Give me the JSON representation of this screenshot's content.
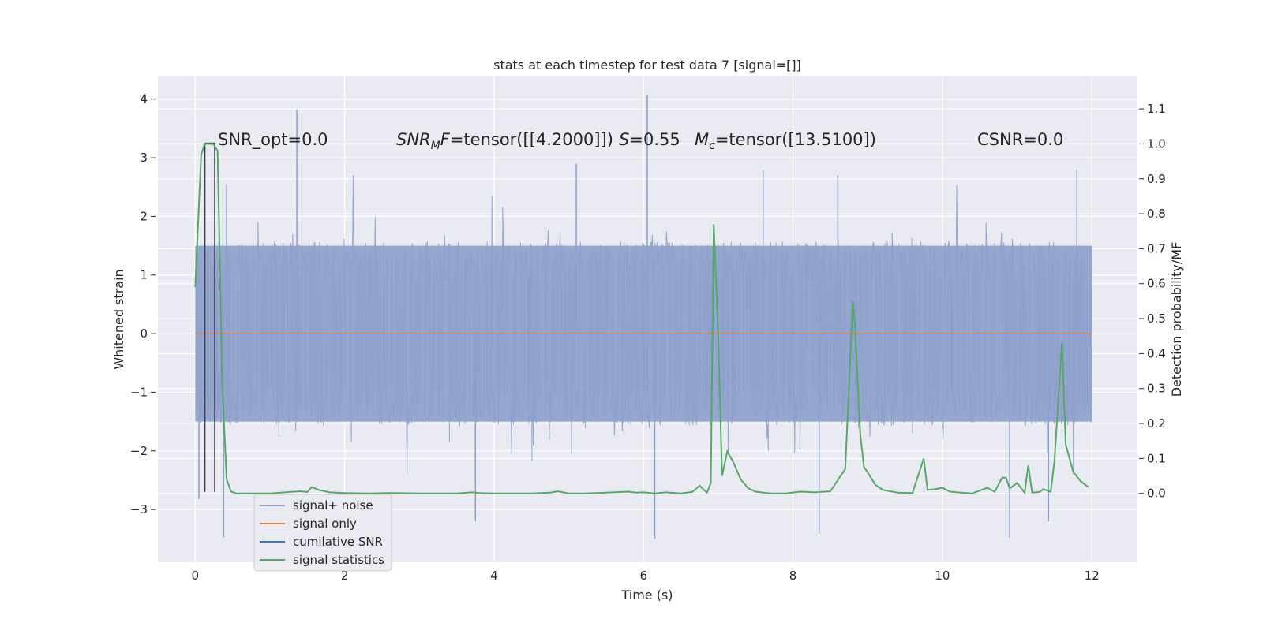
{
  "chart_data": {
    "type": "line",
    "title": "stats at each timestep for test data 7 [signal=[]]",
    "xlabel": "Time (s)",
    "ylabel_left": "Whitened strain",
    "ylabel_right": "Detection probability/MF",
    "xlim": [
      -0.5,
      12.6
    ],
    "ylim_left": [
      -3.9,
      4.4
    ],
    "ylim_right": [
      -0.197,
      1.195
    ],
    "x_ticks": [
      "0",
      "2",
      "4",
      "6",
      "8",
      "10",
      "12"
    ],
    "y_ticks_left": [
      "4",
      "3",
      "2",
      "1",
      "0",
      "−1",
      "−2",
      "−3"
    ],
    "y_ticks_right": [
      "1.1",
      "1.0",
      "0.9",
      "0.8",
      "0.7",
      "0.6",
      "0.5",
      "0.4",
      "0.3",
      "0.2",
      "0.1",
      "0.0"
    ],
    "grid": true,
    "legend_position": "bottom-left",
    "annotations": {
      "snr_opt": "SNR_opt=0.0",
      "snr_mf_symbol": "SNR",
      "snr_mf_sub": "M",
      "snr_mf_suffix": "F",
      "snr_mf_value": "=tensor([[4.2000]])",
      "s_symbol": "S",
      "s_value": "=0.55",
      "mc_symbol": "M",
      "mc_sub": "c",
      "mc_value": "=tensor([13.5100])",
      "csnr": "CSNR=0.0"
    },
    "series": [
      {
        "name": "signal+ noise",
        "axis": "left",
        "color": "#8da0cb",
        "t_start": 0,
        "t_end": 12,
        "samples": 1500,
        "envelope_core": 1.5,
        "spikes_up": [
          [
            1.36,
            3.82
          ],
          [
            6.05,
            4.08
          ],
          [
            0.42,
            2.55
          ],
          [
            5.1,
            2.9
          ],
          [
            7.6,
            2.8
          ],
          [
            8.6,
            2.7
          ],
          [
            11.8,
            2.8
          ]
        ],
        "spikes_down": [
          [
            0.38,
            -3.48
          ],
          [
            6.15,
            -3.5
          ],
          [
            8.35,
            -3.42
          ],
          [
            10.9,
            -3.48
          ],
          [
            3.75,
            -3.2
          ],
          [
            11.42,
            -3.2
          ],
          [
            0.05,
            -2.82
          ]
        ]
      },
      {
        "name": "signal only",
        "axis": "left",
        "color": "#dd8452",
        "x": [
          0,
          12
        ],
        "y": [
          0,
          0
        ]
      },
      {
        "name": "cumilative SNR",
        "axis": "left",
        "color": "#4c72b0",
        "segments": [
          [
            0.13,
            3.25,
            -2.7
          ],
          [
            0.26,
            3.25,
            -2.7
          ]
        ]
      },
      {
        "name": "signal statistics",
        "axis": "right",
        "color": "#55a868",
        "x": [
          0,
          0.08,
          0.13,
          0.18,
          0.24,
          0.3,
          0.36,
          0.42,
          0.48,
          0.55,
          0.65,
          0.8,
          1.0,
          1.2,
          1.4,
          1.5,
          1.56,
          1.65,
          1.8,
          2.0,
          2.3,
          2.6,
          3.0,
          3.5,
          3.7,
          3.8,
          4.0,
          4.5,
          4.75,
          4.85,
          5.0,
          5.2,
          5.5,
          5.8,
          5.9,
          6.0,
          6.15,
          6.3,
          6.5,
          6.65,
          6.75,
          6.85,
          6.9,
          6.94,
          7.0,
          7.05,
          7.12,
          7.2,
          7.3,
          7.4,
          7.5,
          7.7,
          7.9,
          8.1,
          8.3,
          8.5,
          8.7,
          8.8,
          8.83,
          8.9,
          8.95,
          9.0,
          9.1,
          9.2,
          9.4,
          9.6,
          9.75,
          9.8,
          9.9,
          10.0,
          10.1,
          10.2,
          10.4,
          10.6,
          10.7,
          10.8,
          10.85,
          10.9,
          11.0,
          11.1,
          11.15,
          11.2,
          11.3,
          11.35,
          11.45,
          11.5,
          11.6,
          11.65,
          11.75,
          11.85,
          11.95
        ],
        "y": [
          0.59,
          0.97,
          1.0,
          1.0,
          1.0,
          0.98,
          0.32,
          0.04,
          0.005,
          0.0,
          0.0,
          0.0,
          0.0,
          0.003,
          0.006,
          0.004,
          0.018,
          0.01,
          0.003,
          0.001,
          0.0,
          0.001,
          0.0,
          0.0,
          0.003,
          0.001,
          0.0,
          0.0,
          0.002,
          0.006,
          0.0,
          0.0,
          0.002,
          0.005,
          0.002,
          0.003,
          0.0,
          0.003,
          0.0,
          0.004,
          0.022,
          0.002,
          0.03,
          0.77,
          0.45,
          0.05,
          0.12,
          0.09,
          0.04,
          0.015,
          0.005,
          0.0,
          0.0,
          0.005,
          0.003,
          0.006,
          0.07,
          0.55,
          0.48,
          0.17,
          0.075,
          0.06,
          0.025,
          0.01,
          0.002,
          0.001,
          0.1,
          0.01,
          0.012,
          0.016,
          0.005,
          0.003,
          0.0,
          0.016,
          0.005,
          0.045,
          0.045,
          0.014,
          0.03,
          0.002,
          0.08,
          0.002,
          0.004,
          0.012,
          0.005,
          0.095,
          0.43,
          0.14,
          0.062,
          0.035,
          0.018
        ]
      }
    ]
  }
}
